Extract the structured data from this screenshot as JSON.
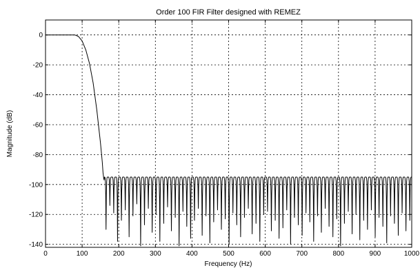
{
  "chart_data": {
    "type": "line",
    "title": "Order 100 FIR Filter designed with REMEZ",
    "xlabel": "Frequency (Hz)",
    "ylabel": "Magnitude (dB)",
    "xlim": [
      0,
      1000
    ],
    "ylim": [
      -142,
      10
    ],
    "grid": true,
    "legend": "none",
    "xticks": [
      0,
      100,
      200,
      300,
      400,
      500,
      600,
      700,
      800,
      900,
      1000
    ],
    "xtick_labels": [
      "0",
      "100",
      "200",
      "300",
      "400",
      "500",
      "600",
      "700",
      "800",
      "900",
      "1000"
    ],
    "yticks": [
      0,
      -20,
      -40,
      -60,
      -80,
      -100,
      -120,
      -140
    ],
    "ytick_labels": [
      "0",
      "-20",
      "-40",
      "-60",
      "-80",
      "-100",
      "-120",
      "-140"
    ],
    "line_color": "#000000",
    "series": [
      {
        "x": [
          0,
          20,
          40,
          60,
          80,
          90,
          100,
          110,
          120,
          130,
          140,
          150,
          155,
          157,
          159,
          160
        ],
        "y": [
          0,
          0,
          0,
          0,
          0,
          -1,
          -4,
          -10,
          -19,
          -32,
          -50,
          -72,
          -85,
          -92,
          -96,
          -97
        ]
      }
    ],
    "stopband": {
      "start_hz": 160,
      "end_hz": 1000,
      "ripple_top_db": -95,
      "ripple_period_hz": 10.5,
      "null_depths_db": [
        -130,
        -114,
        -119,
        -138,
        -124,
        -117,
        -135,
        -121,
        -113,
        -141,
        -127,
        -116,
        -132,
        -120,
        -138,
        -126,
        -115,
        -131,
        -122,
        -141,
        -118,
        -128,
        -136,
        -124,
        -116,
        -134,
        -121,
        -139,
        -125,
        -117,
        -130,
        -123,
        -140,
        -119,
        -127,
        -135,
        -122,
        -116,
        -133,
        -126,
        -138,
        -120,
        -118,
        -131,
        -124,
        -136,
        -129,
        -117,
        -140,
        -122,
        -127,
        -134,
        -119,
        -125,
        -138,
        -121,
        -132,
        -116,
        -128,
        -135,
        -123,
        -141,
        -126,
        -118,
        -133,
        -120,
        -137,
        -124,
        -130,
        -117,
        -135,
        -122,
        -128,
        -139,
        -121,
        -126,
        -134,
        -119,
        -131,
        -124
      ]
    }
  }
}
